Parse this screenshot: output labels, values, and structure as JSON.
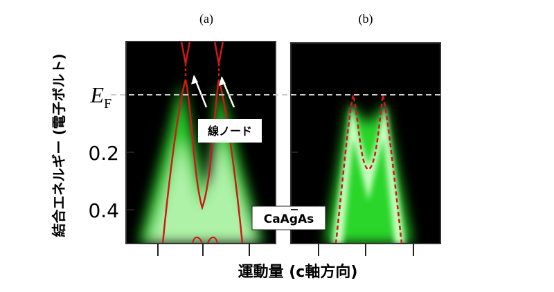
{
  "panels": [
    {
      "label": "(a)"
    },
    {
      "label": "(b)"
    }
  ],
  "y_axis": {
    "label": "結合エネルギー (電子ボルト)",
    "ticks": [
      {
        "main": "E",
        "sub": "F"
      },
      {
        "main": "0.2"
      },
      {
        "main": "0.4"
      }
    ]
  },
  "x_axis": {
    "label": "運動量 (c軸方向)"
  },
  "annotations": {
    "node": "線ノード",
    "material": "CaAgAs"
  }
}
